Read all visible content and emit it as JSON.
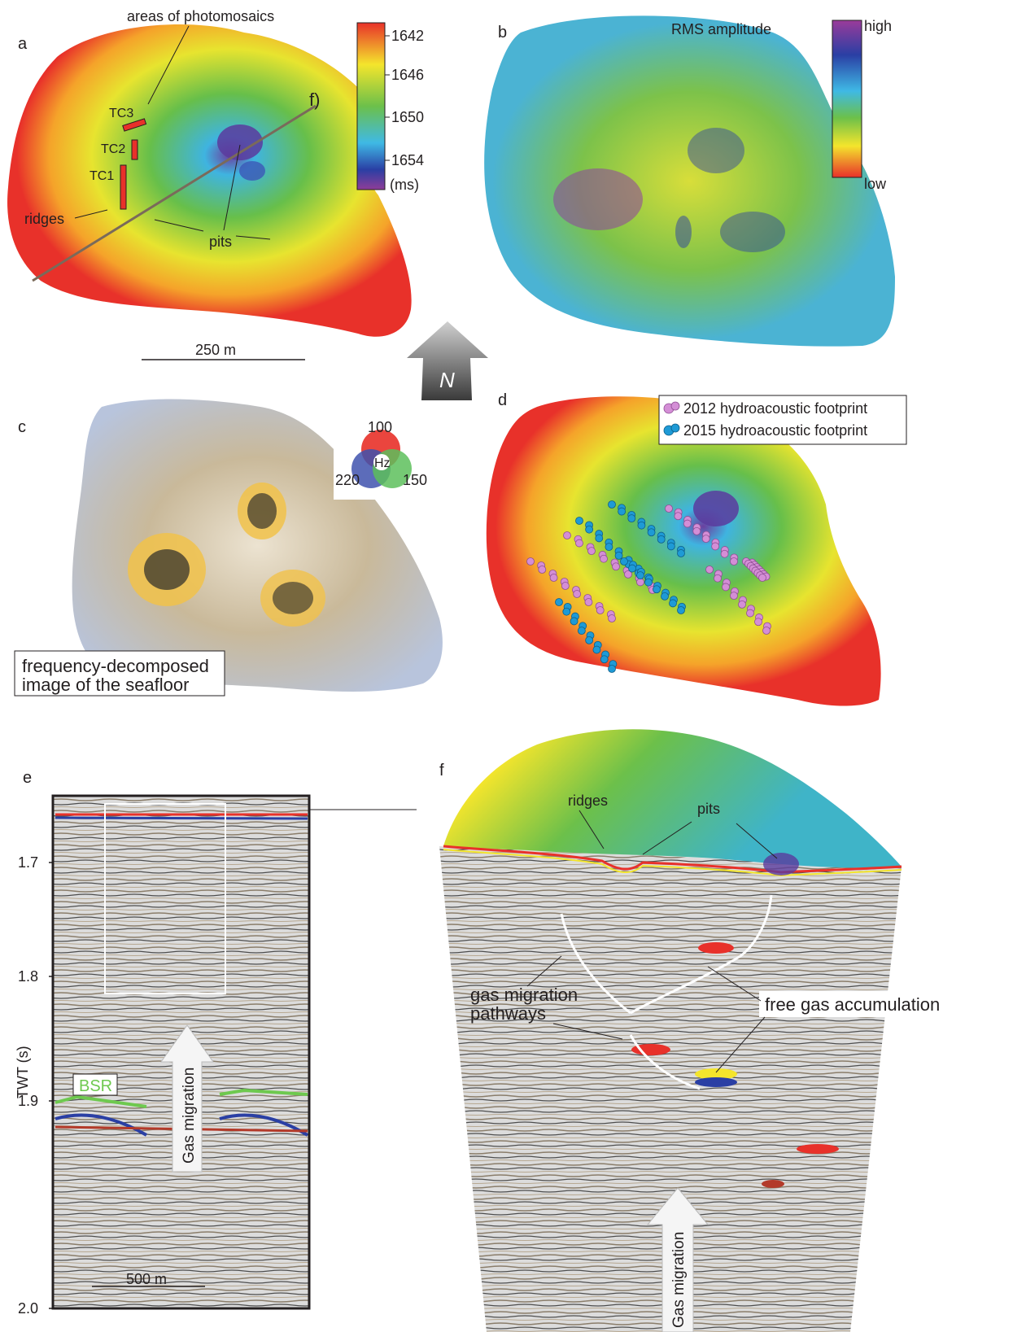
{
  "panels": {
    "a": {
      "label": "a",
      "photomosaic_label": "areas of photomosaics",
      "line_label": "f)",
      "tc_labels": [
        "TC3",
        "TC2",
        "TC1"
      ],
      "ridges_label": "ridges",
      "pits_label": "pits",
      "scale_label": "250 m",
      "colorbar": {
        "ticks": [
          "1642",
          "1646",
          "1650",
          "1654"
        ],
        "unit": "(ms)"
      }
    },
    "b": {
      "label": "b",
      "title": "RMS amplitude",
      "high_label": "high",
      "low_label": "low"
    },
    "north": {
      "label": "N"
    },
    "c": {
      "label": "c",
      "rgb_center": "Hz",
      "rgb_ticks": [
        "100",
        "220",
        "150"
      ],
      "caption_line1": "frequency-decomposed",
      "caption_line2": "image of the seafloor"
    },
    "d": {
      "label": "d",
      "legend": [
        {
          "text": "2012 hydroacoustic footprint",
          "color": "#d48ed6"
        },
        {
          "text": "2015 hydroacoustic footprint",
          "color": "#1e9ad6"
        }
      ]
    },
    "e": {
      "label": "e",
      "axis_title": "TWT (s)",
      "ticks": [
        "1.7",
        "1.8",
        "1.9",
        "2.0"
      ],
      "bsr_label": "BSR",
      "gas_label": "Gas migration",
      "scale_label": "500 m"
    },
    "f": {
      "label": "f",
      "ridges_label": "ridges",
      "pits_label": "pits",
      "pathways_line1": "gas migration",
      "pathways_line2": "pathways",
      "free_gas_label": "free gas accumulation",
      "gas_label": "Gas migration"
    }
  },
  "colors": {
    "red": "#e8312a",
    "yellow": "#f4e52c",
    "green": "#6cc04a",
    "cyan": "#3fb9e5",
    "blue": "#2a3fa4",
    "purple": "#7d3d98",
    "bsr_green": "#6ec94f"
  }
}
